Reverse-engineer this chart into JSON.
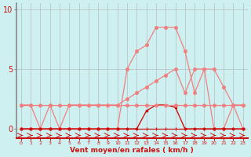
{
  "x": [
    0,
    1,
    2,
    3,
    4,
    5,
    6,
    7,
    8,
    9,
    10,
    11,
    12,
    13,
    14,
    15,
    16,
    17,
    18,
    19,
    20,
    21,
    22,
    23
  ],
  "rafales_y": [
    0,
    0,
    0,
    0,
    0,
    0,
    0,
    0,
    0,
    0,
    0,
    5,
    6.5,
    7,
    8.5,
    8.5,
    8.5,
    6.5,
    3,
    5,
    0,
    0,
    2,
    0
  ],
  "trend_y": [
    2,
    2,
    0,
    2,
    0,
    2,
    2,
    2,
    2,
    2,
    2,
    2.5,
    3,
    3.5,
    4,
    4.5,
    5,
    3,
    5,
    5,
    5,
    3.5,
    2,
    2
  ],
  "dark_y": [
    0,
    0,
    0,
    0,
    0,
    0,
    0,
    0,
    0,
    0,
    0,
    0,
    0,
    1.5,
    2,
    2,
    1.8,
    0,
    0,
    0,
    0,
    0,
    0,
    0
  ],
  "flat_y": [
    2,
    2,
    2,
    2,
    2,
    2,
    2,
    2,
    2,
    2,
    2,
    2,
    2,
    2,
    2,
    2,
    2,
    2,
    2,
    2,
    2,
    2,
    2,
    2
  ],
  "zero_dark": [
    0,
    0,
    0,
    0,
    0,
    0,
    0,
    0,
    0,
    0,
    0,
    0,
    0,
    0,
    0,
    0,
    0,
    0,
    0,
    0,
    0,
    0,
    0,
    0
  ],
  "background": "#cff0f0",
  "grid_color": "#b0b0b0",
  "color_light": "#f08080",
  "color_dark": "#cc1111",
  "xlabel": "Vent moyen/en rafales ( km/h )",
  "ylim": [
    -0.8,
    10.5
  ],
  "yticks": [
    0,
    5,
    10
  ],
  "xticks": [
    0,
    1,
    2,
    3,
    4,
    5,
    6,
    7,
    8,
    9,
    10,
    11,
    12,
    13,
    14,
    15,
    16,
    17,
    18,
    19,
    20,
    21,
    22,
    23
  ]
}
